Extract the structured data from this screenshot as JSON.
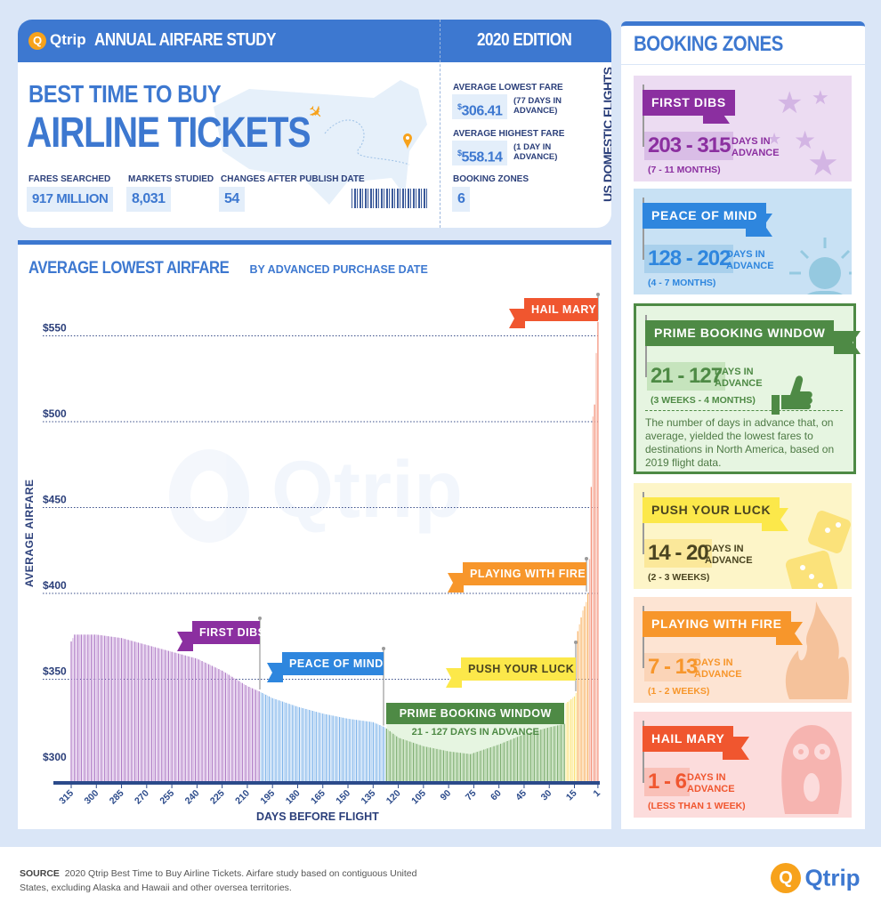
{
  "header": {
    "brand": "Qtrip",
    "title": "ANNUAL AIRFARE STUDY",
    "edition": "2020 EDITION"
  },
  "hero": {
    "line1": "BEST TIME TO BUY",
    "line2": "AIRLINE TICKETS"
  },
  "stats": [
    {
      "label": "FARES SEARCHED",
      "value": "917 MILLION"
    },
    {
      "label": "MARKETS STUDIED",
      "value": "8,031"
    },
    {
      "label": "CHANGES AFTER PUBLISH DATE",
      "value": "54"
    }
  ],
  "fares": {
    "lowest_label": "AVERAGE LOWEST FARE",
    "lowest_value": "306.41",
    "lowest_note": "(77 DAYS IN ADVANCE)",
    "highest_label": "AVERAGE HIGHEST FARE",
    "highest_value": "558.14",
    "highest_note": "(1 DAY IN ADVANCE)",
    "zones_label": "BOOKING ZONES",
    "zones_value": "6",
    "currency": "$"
  },
  "vertical_label": "US DOMESTIC FLIGHTS",
  "chart_data": {
    "type": "bar",
    "title": "AVERAGE LOWEST AIRFARE",
    "subtitle": "BY ADVANCED PURCHASE DATE",
    "xlabel": "DAYS BEFORE FLIGHT",
    "ylabel": "AVERAGE AIRFARE",
    "x_ticks": [
      "315",
      "300",
      "285",
      "270",
      "255",
      "240",
      "225",
      "210",
      "195",
      "180",
      "165",
      "150",
      "135",
      "120",
      "105",
      "90",
      "75",
      "60",
      "45",
      "30",
      "15",
      "1"
    ],
    "y_ticks": [
      "$300",
      "$350",
      "$400",
      "$450",
      "$500",
      "$550"
    ],
    "y_tick_values": [
      300,
      350,
      400,
      450,
      500,
      550
    ],
    "xlim": [
      315,
      1
    ],
    "ylim": [
      291,
      560
    ],
    "grid": "horizontal dotted",
    "points": [
      [
        315,
        372
      ],
      [
        313,
        376
      ],
      [
        300,
        376
      ],
      [
        285,
        374
      ],
      [
        270,
        370
      ],
      [
        255,
        366
      ],
      [
        240,
        362
      ],
      [
        225,
        355
      ],
      [
        210,
        346
      ],
      [
        203,
        343
      ],
      [
        195,
        339
      ],
      [
        180,
        334
      ],
      [
        165,
        330
      ],
      [
        150,
        327
      ],
      [
        135,
        325
      ],
      [
        128,
        322
      ],
      [
        120,
        316
      ],
      [
        105,
        311
      ],
      [
        90,
        308
      ],
      [
        77,
        306.41
      ],
      [
        60,
        312
      ],
      [
        45,
        318
      ],
      [
        30,
        322
      ],
      [
        21,
        324
      ],
      [
        20,
        336
      ],
      [
        15,
        340
      ],
      [
        14,
        342
      ],
      [
        13,
        378
      ],
      [
        10,
        390
      ],
      [
        8,
        395
      ],
      [
        7,
        400
      ],
      [
        6,
        420
      ],
      [
        5,
        462
      ],
      [
        4,
        503
      ],
      [
        3,
        510
      ],
      [
        2,
        540
      ],
      [
        1,
        558.14
      ]
    ],
    "zones": [
      {
        "name": "FIRST DIBS",
        "from": 315,
        "to": 203,
        "color": "#8b2fa0",
        "bar": "#b07cc6",
        "bar2": "#dcc0e8"
      },
      {
        "name": "PEACE OF MIND",
        "from": 202,
        "to": 128,
        "color": "#2e86de",
        "bar": "#7fb4ea",
        "bar2": "#bcd8f5"
      },
      {
        "name": "PRIME BOOKING WINDOW",
        "from": 127,
        "to": 21,
        "color": "#4e8a45",
        "bar": "#7fae72",
        "bar2": "#bcd8b2",
        "note": "21 - 127 DAYS IN ADVANCE"
      },
      {
        "name": "PUSH YOUR LUCK",
        "from": 20,
        "to": 14,
        "color": "#fce84a",
        "bar": "#fbe27a",
        "bar2": "#fdf0aa"
      },
      {
        "name": "PLAYING WITH FIRE",
        "from": 13,
        "to": 7,
        "color": "#f7962b",
        "bar": "#f9b56a",
        "bar2": "#fcd3a3"
      },
      {
        "name": "HAIL MARY",
        "from": 6,
        "to": 1,
        "color": "#f0562f",
        "bar": "#f4917a",
        "bar2": "#f8c0b2"
      }
    ]
  },
  "watermark": "Qtrip",
  "booking": {
    "title": "BOOKING ZONES",
    "zones": [
      {
        "name": "FIRST DIBS",
        "range": "203 - 315",
        "unit": "DAYS IN ADVANCE",
        "period": "(7 - 11 MONTHS)",
        "icon": "stars-icon"
      },
      {
        "name": "PEACE OF MIND",
        "range": "128 - 202",
        "unit": "DAYS IN ADVANCE",
        "period": "(4 - 7 MONTHS)",
        "icon": "person-idea-icon"
      },
      {
        "name": "PRIME BOOKING WINDOW",
        "range": "21 - 127",
        "unit": "DAYS IN ADVANCE",
        "period": "(3 WEEKS - 4 MONTHS)",
        "icon": "thumbs-up-icon",
        "description": "The number of days in advance that, on average, yielded the lowest fares to destinations in North America, based on 2019 flight data."
      },
      {
        "name": "PUSH YOUR LUCK",
        "range": "14 - 20",
        "unit": "DAYS IN ADVANCE",
        "period": "(2 - 3 WEEKS)",
        "icon": "dice-icon"
      },
      {
        "name": "PLAYING WITH FIRE",
        "range": "7 - 13",
        "unit": "DAYS IN ADVANCE",
        "period": "(1 - 2 WEEKS)",
        "icon": "fire-icon"
      },
      {
        "name": "HAIL MARY",
        "range": "1 - 6",
        "unit": "DAYS IN ADVANCE",
        "period": "(LESS THAN 1 WEEK)",
        "icon": "scream-face-icon"
      }
    ]
  },
  "footer": {
    "source_label": "SOURCE",
    "source_text": "2020 Qtrip Best Time to Buy Airline Tickets. Airfare study based on contiguous United States, excluding Alaska and Hawaii and other oversea territories.",
    "brand": "Qtrip"
  }
}
